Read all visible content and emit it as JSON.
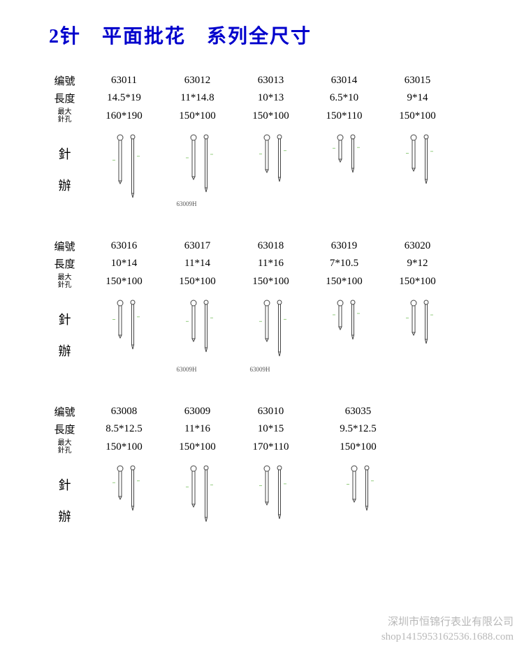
{
  "title": "2针　平面批花　系列全尺寸",
  "row_labels": {
    "model": "编號",
    "length": "長度",
    "max_hole1": "最大",
    "max_hole2": "針孔",
    "needle": "針",
    "handle": "辦"
  },
  "sections": [
    {
      "items": [
        {
          "model": "63011",
          "length": "14.5*19",
          "hole": "160*190",
          "h1": 66,
          "h2": 88,
          "sub": ""
        },
        {
          "model": "63012",
          "length": "11*14.8",
          "hole": "150*100",
          "h1": 60,
          "h2": 80,
          "sub": "63009H"
        },
        {
          "model": "63013",
          "length": "10*13",
          "hole": "150*100",
          "h1": 50,
          "h2": 65,
          "sub": ""
        },
        {
          "model": "63014",
          "length": "6.5*10",
          "hole": "150*110",
          "h1": 35,
          "h2": 52,
          "sub": ""
        },
        {
          "model": "63015",
          "length": "9*14",
          "hole": "150*100",
          "h1": 48,
          "h2": 68,
          "sub": ""
        }
      ]
    },
    {
      "items": [
        {
          "model": "63016",
          "length": "10*14",
          "hole": "150*100",
          "h1": 50,
          "h2": 68,
          "sub": ""
        },
        {
          "model": "63017",
          "length": "11*14",
          "hole": "150*100",
          "h1": 55,
          "h2": 72,
          "sub": "63009H"
        },
        {
          "model": "63018",
          "length": "11*16",
          "hole": "150*100",
          "h1": 55,
          "h2": 78,
          "sub": "63009H"
        },
        {
          "model": "63019",
          "length": "7*10.5",
          "hole": "150*100",
          "h1": 38,
          "h2": 54,
          "sub": ""
        },
        {
          "model": "63020",
          "length": "9*12",
          "hole": "150*100",
          "h1": 46,
          "h2": 60,
          "sub": ""
        }
      ]
    },
    {
      "items": [
        {
          "model": "63008",
          "length": "8.5*12.5",
          "hole": "150*100",
          "h1": 44,
          "h2": 62,
          "sub": ""
        },
        {
          "model": "63009",
          "length": "11*16",
          "hole": "150*100",
          "h1": 55,
          "h2": 78,
          "sub": ""
        },
        {
          "model": "63010",
          "length": "10*15",
          "hole": "170*110",
          "h1": 52,
          "h2": 74,
          "sub": ""
        },
        {
          "model": "63035",
          "length": "9.5*12.5",
          "hole": "150*100",
          "h1": 48,
          "h2": 62,
          "sub": "",
          "offset": true
        }
      ]
    }
  ],
  "watermark": {
    "line1": "深圳市恒锦行表业有限公司",
    "line2": "shop1415953162536.1688.com"
  },
  "colors": {
    "title": "#0000cc",
    "text": "#000000",
    "watermark": "#b8b8b8",
    "stroke": "#444444",
    "tick": "#7ac060"
  }
}
